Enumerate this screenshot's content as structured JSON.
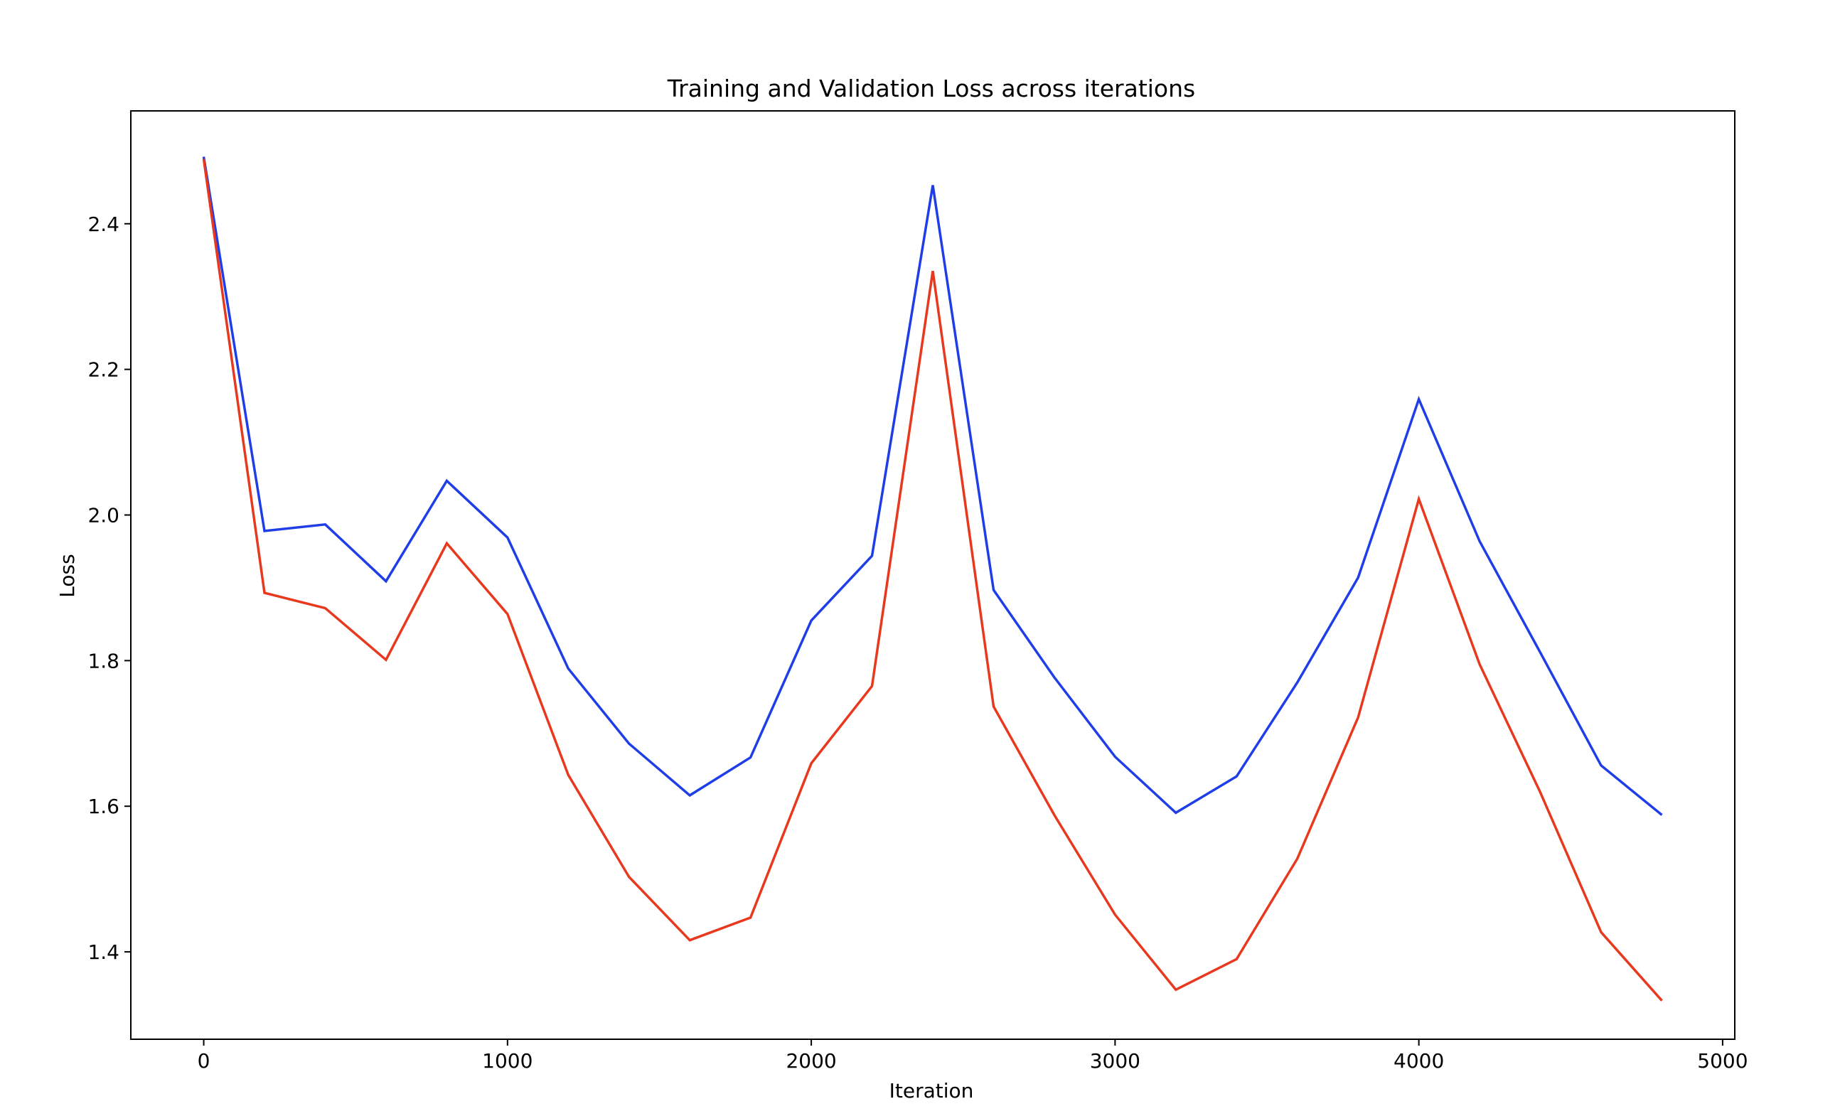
{
  "chart_data": {
    "type": "line",
    "title": "Training and Validation Loss across iterations",
    "xlabel": "Iteration",
    "ylabel": "Loss",
    "xlim": [
      -240,
      5040
    ],
    "ylim": [
      1.28,
      2.555
    ],
    "xticks": [
      0,
      1000,
      2000,
      3000,
      4000,
      5000
    ],
    "xtick_labels": [
      "0",
      "1000",
      "2000",
      "3000",
      "4000",
      "5000"
    ],
    "yticks": [
      1.4,
      1.6,
      1.8,
      2.0,
      2.2,
      2.4
    ],
    "ytick_labels": [
      "1.4",
      "1.6",
      "1.8",
      "2.0",
      "2.2",
      "2.4"
    ],
    "grid": false,
    "legend": false,
    "x": [
      0,
      200,
      400,
      600,
      800,
      1000,
      1200,
      1400,
      1600,
      1800,
      2000,
      2200,
      2400,
      2600,
      2800,
      3000,
      3200,
      3400,
      3600,
      3800,
      4000,
      4200,
      4400,
      4600,
      4800
    ],
    "series": [
      {
        "color": "#1f3ee8",
        "values": [
          2.492,
          1.978,
          1.987,
          1.909,
          2.047,
          1.969,
          1.789,
          1.686,
          1.615,
          1.667,
          1.855,
          1.944,
          2.453,
          1.897,
          1.777,
          1.668,
          1.591,
          1.641,
          1.77,
          1.914,
          2.159,
          1.964,
          1.811,
          1.656,
          1.588
        ]
      },
      {
        "color": "#e8391f",
        "values": [
          2.489,
          1.893,
          1.872,
          1.801,
          1.961,
          1.864,
          1.643,
          1.503,
          1.416,
          1.447,
          1.659,
          1.765,
          2.335,
          1.737,
          1.588,
          1.451,
          1.348,
          1.39,
          1.528,
          1.722,
          2.022,
          1.795,
          1.619,
          1.427,
          1.333
        ]
      }
    ]
  }
}
